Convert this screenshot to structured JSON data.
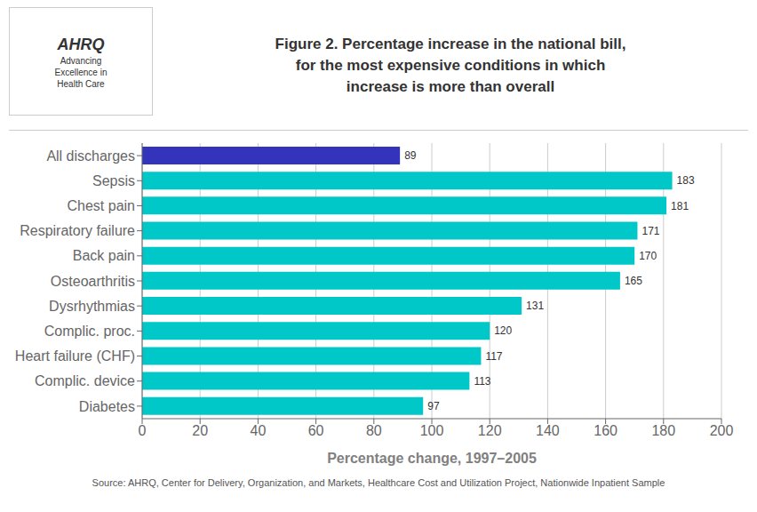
{
  "chart_data": {
    "type": "bar",
    "orientation": "horizontal",
    "title": [
      "Figure 2. Percentage increase in the national bill,",
      "for the most expensive conditions in which",
      "increase is more than overall"
    ],
    "x_label": "Percentage change, 1997–2005",
    "categories": [
      "Diabetes",
      "Complic. device",
      "Heart failure (CHF)",
      "Complic. proc.",
      "Dysrhythmias",
      "Osteoarthritis",
      "Back pain",
      "Respiratory failure",
      "Chest pain",
      "Sepsis",
      "All discharges"
    ],
    "values": [
      97,
      113,
      117,
      120,
      131,
      165,
      170,
      171,
      181,
      183,
      89
    ],
    "colors": [
      "#00C8C8",
      "#00C8C8",
      "#00C8C8",
      "#00C8C8",
      "#00C8C8",
      "#00C8C8",
      "#00C8C8",
      "#00C8C8",
      "#00C8C8",
      "#00C8C8",
      "#3333BB"
    ],
    "xlim": [
      0,
      200
    ],
    "xticks": [
      0,
      20,
      40,
      60,
      80,
      100,
      120,
      140,
      160,
      180,
      200
    ],
    "grid": true,
    "data_labels": true,
    "annotations": [
      "AHRQ",
      "Advancing",
      "Excellence in",
      "Health Care",
      "Source: AHRQ, Center for Delivery, Organization, and Markets, Healthcare Cost and Utilization Project, Nationwide Inpatient Sample"
    ]
  }
}
